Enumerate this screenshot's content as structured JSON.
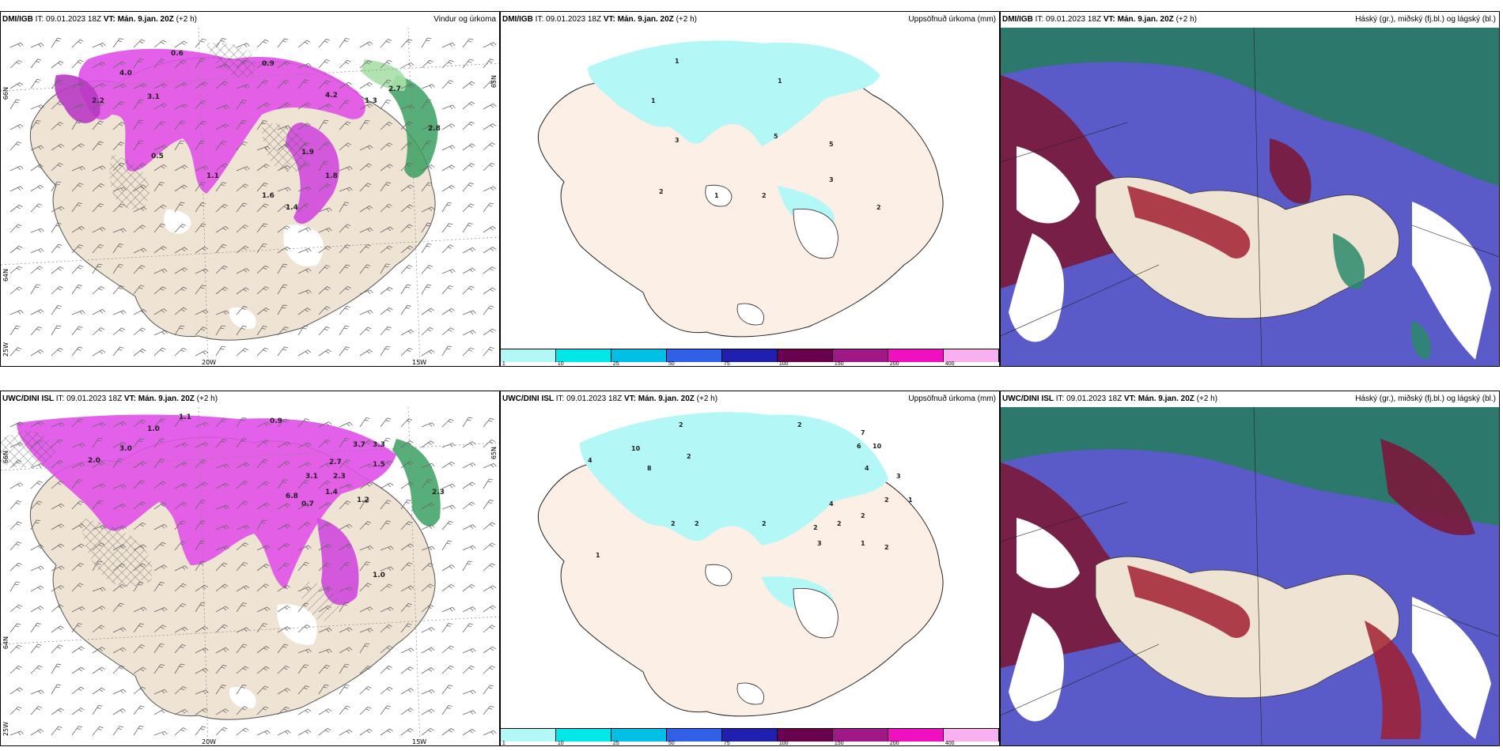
{
  "colors": {
    "land": "#efe3d4",
    "land_center": "#fcf0e6",
    "precip_light": "#b3f7f7",
    "magenta": "#e050e8",
    "magenta_dark": "#9a3aa0",
    "green": "#2e9a5a",
    "cloud_high_green": "#2a8a6a",
    "cloud_mid_red": "#8a2040",
    "cloud_low_blue": "#5050c8"
  },
  "panels": [
    {
      "id": "dmi-wind",
      "model": "DMI/IGB",
      "it_label": "IT:",
      "it_value": "09.01.2023 18Z",
      "vt_label": "VT:",
      "vt_value": "Mán. 9.jan. 20Z",
      "lead": "(+2 h)",
      "right_title": "Vindur og úrkoma",
      "lat_labels": [
        "66N",
        "64N",
        "65N"
      ],
      "lon_labels": [
        "25W",
        "20W",
        "15W"
      ],
      "value_labels": [
        "4.0",
        "3.1",
        "2.2",
        "4.2",
        "2.7",
        "1.3",
        "0.9",
        "0.6",
        "1.9",
        "1.8",
        "1.4",
        "1.1",
        "0.5",
        "2.8",
        "1.6"
      ]
    },
    {
      "id": "dmi-accum",
      "model": "DMI/IGB",
      "it_label": "IT:",
      "it_value": "09.01.2023 18Z",
      "vt_label": "VT:",
      "vt_value": "Mán. 9.jan. 20Z",
      "lead": "(+2 h)",
      "right_title": "Uppsöfnuð úrkoma (mm)",
      "value_labels": [
        "1",
        "3",
        "5",
        "5",
        "3",
        "2",
        "1",
        "2",
        "2",
        "1",
        "1"
      ]
    },
    {
      "id": "dmi-cloud",
      "model": "DMI/IGB",
      "it_label": "IT:",
      "it_value": "09.01.2023 18Z",
      "vt_label": "VT:",
      "vt_value": "Mán. 9.jan. 20Z",
      "lead": "(+2 h)",
      "right_title": "Háský (gr.), miðský (fj.bl.) og lágský (bl.)"
    },
    {
      "id": "uwc-wind",
      "model": "UWC/DINI ISL",
      "it_label": "IT:",
      "it_value": "09.01.2023 18Z",
      "vt_label": "VT:",
      "vt_value": "Mán. 9.jan. 20Z",
      "lead": "(+2 h)",
      "right_title": "",
      "lat_labels": [
        "66N",
        "64N",
        "65N"
      ],
      "lon_labels": [
        "25W",
        "20W",
        "15W"
      ],
      "value_labels": [
        "1.0",
        "1.1",
        "3.0",
        "2.0",
        "3.7",
        "2.7",
        "3.1",
        "2.3",
        "3.3",
        "1.5",
        "1.4",
        "0.7",
        "6.8",
        "1.2",
        "1.0",
        "2.3",
        "0.9"
      ]
    },
    {
      "id": "uwc-accum",
      "model": "UWC/DINI ISL",
      "it_label": "IT:",
      "it_value": "09.01.2023 18Z",
      "vt_label": "VT:",
      "vt_value": "Mán. 9.jan. 20Z",
      "lead": "(+2 h)",
      "right_title": "Uppsöfnuð úrkoma (mm)",
      "value_labels": [
        "2",
        "2",
        "10",
        "4",
        "8",
        "2",
        "7",
        "6",
        "10",
        "4",
        "3",
        "2",
        "1",
        "4",
        "2",
        "2",
        "2",
        "3",
        "1",
        "2",
        "1",
        "2",
        "2",
        "2"
      ]
    },
    {
      "id": "uwc-cloud",
      "model": "UWC/DINI ISL",
      "it_label": "IT:",
      "it_value": "09.01.2023 18Z",
      "vt_label": "VT:",
      "vt_value": "Mán. 9.jan. 20Z",
      "lead": "(+2 h)",
      "right_title": "Háský (gr.), miðský (fj.bl.) og lágský (bl.)"
    }
  ],
  "colorbar": {
    "swatch_colors": [
      "#b3f7f7",
      "#00e8e8",
      "#00c0e8",
      "#3060e8",
      "#2020b0",
      "#6a0050",
      "#a01888",
      "#f010c0",
      "#f8b0f0"
    ],
    "ticks": [
      "1",
      "10",
      "25",
      "50",
      "75",
      "100",
      "150",
      "200",
      "400"
    ]
  }
}
